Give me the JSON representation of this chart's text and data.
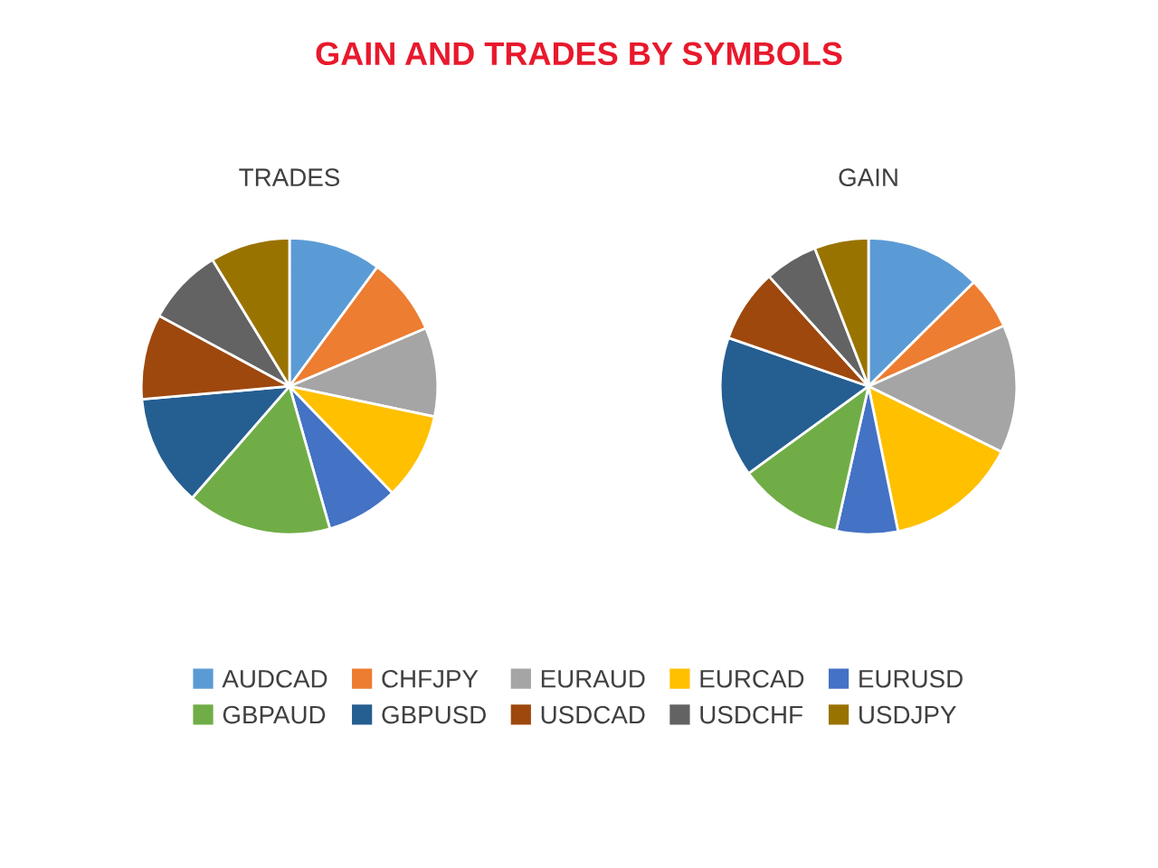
{
  "chart_data": [
    {
      "type": "pie",
      "title": "GAIN AND TRADES BY SYMBOLS",
      "subtitle": "TRADES",
      "legend": "bottom",
      "categories": [
        "AUDCAD",
        "CHFJPY",
        "EURAUD",
        "EURCAD",
        "EURUSD",
        "GBPAUD",
        "GBPUSD",
        "USDCAD",
        "USDCHF",
        "USDJPY"
      ],
      "values": [
        10.1,
        8.5,
        9.7,
        9.5,
        7.8,
        15.8,
        12.2,
        9.3,
        8.4,
        8.7
      ],
      "colors": [
        "#5b9bd5",
        "#ed7d31",
        "#a5a5a5",
        "#ffc000",
        "#4472c4",
        "#70ad47",
        "#255e91",
        "#9e480e",
        "#636363",
        "#997300"
      ]
    },
    {
      "type": "pie",
      "subtitle": "GAIN",
      "categories": [
        null,
        null,
        null,
        null,
        null,
        null,
        null,
        null,
        null,
        null
      ],
      "values": [
        12.6,
        5.7,
        14.0,
        14.5,
        6.7,
        11.5,
        15.3,
        8.0,
        5.8,
        5.9
      ],
      "colors": [
        "#5b9bd5",
        "#ed7d31",
        "#a5a5a5",
        "#ffc000",
        "#4472c4",
        "#70ad47",
        "#255e91",
        "#9e480e",
        "#636363",
        "#997300"
      ]
    }
  ]
}
